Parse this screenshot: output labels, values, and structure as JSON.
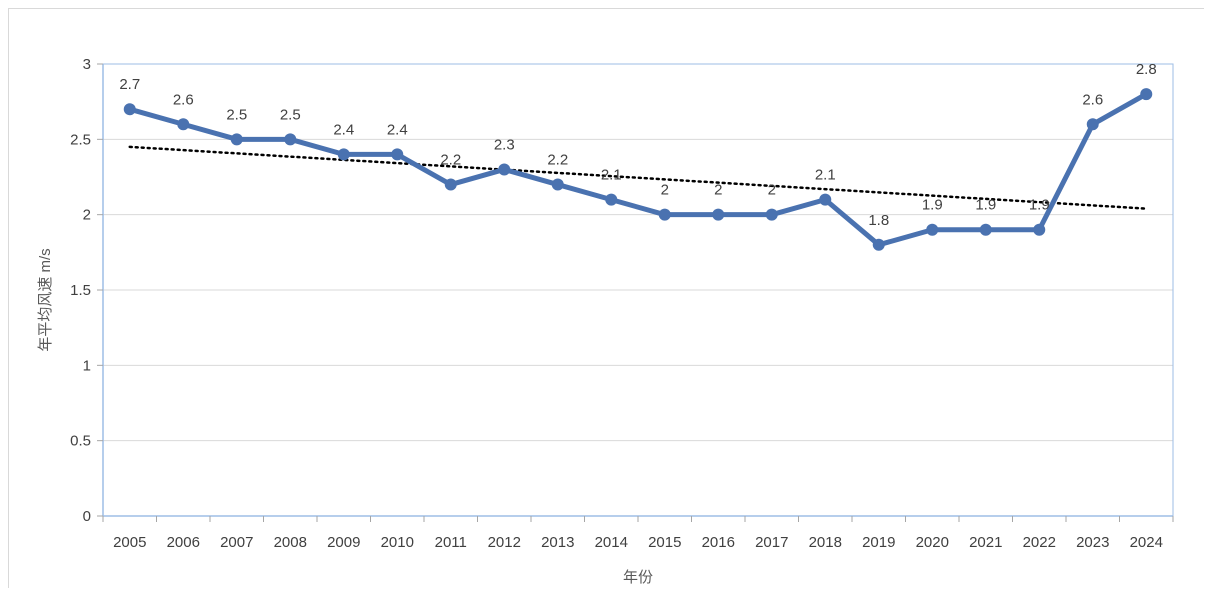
{
  "chart_data": {
    "type": "line",
    "title": "",
    "xlabel": "年份",
    "ylabel": "年平均风速 m/s",
    "categories": [
      "2005",
      "2006",
      "2007",
      "2008",
      "2009",
      "2010",
      "2011",
      "2012",
      "2013",
      "2014",
      "2015",
      "2016",
      "2017",
      "2018",
      "2019",
      "2020",
      "2021",
      "2022",
      "2023",
      "2024"
    ],
    "series": [
      {
        "values": [
          2.7,
          2.6,
          2.5,
          2.5,
          2.4,
          2.4,
          2.2,
          2.3,
          2.2,
          2.1,
          2,
          2,
          2,
          2.1,
          1.8,
          1.9,
          1.9,
          1.9,
          2.6,
          2.8
        ],
        "data_labels": [
          "2.7",
          "2.6",
          "2.5",
          "2.5",
          "2.4",
          "2.4",
          "2.2",
          "2.3",
          "2.2",
          "2.1",
          "2",
          "2",
          "2",
          "2.1",
          "1.8",
          "1.9",
          "1.9",
          "1.9",
          "2.6",
          "2.8"
        ],
        "color": "#4a72b0",
        "trendline": {
          "type": "linear",
          "style": "dotted",
          "color": "#000000"
        }
      }
    ],
    "yticks": [
      "0",
      "0.5",
      "1",
      "1.5",
      "2",
      "2.5",
      "3"
    ],
    "ylim": [
      0,
      3
    ],
    "grid": true
  }
}
